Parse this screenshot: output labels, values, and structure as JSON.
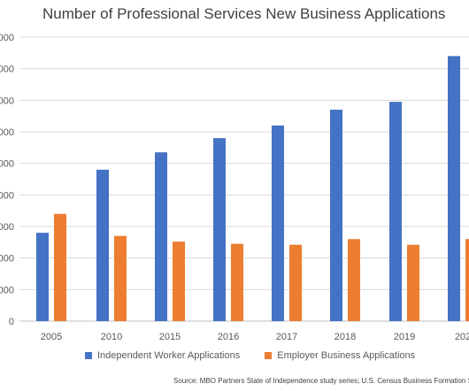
{
  "chart_data": {
    "type": "bar",
    "title": "Number of Professional Services New Business Applications",
    "categories": [
      "2005",
      "2010",
      "2015",
      "2016",
      "2017",
      "2018",
      "2019",
      "202"
    ],
    "y_ticks": [
      "0000",
      "0000",
      "0000",
      "0000",
      "0000",
      "0000",
      "0000",
      "0000",
      "0000",
      "0"
    ],
    "ylim": [
      0,
      90
    ],
    "grid": true,
    "legend_position": "bottom",
    "series": [
      {
        "name": "Independent Worker Applications",
        "color": "#4472C4",
        "values": [
          28,
          48,
          53.5,
          58,
          62,
          67,
          69.5,
          84
        ]
      },
      {
        "name": "Employer Business Applications",
        "color": "#ED7D31",
        "values": [
          34,
          27,
          25.2,
          24.5,
          24.2,
          26,
          24.2,
          26
        ]
      }
    ],
    "source": "Source: MBO Partners State of Independence study series; U.S. Census Business Formation S"
  }
}
